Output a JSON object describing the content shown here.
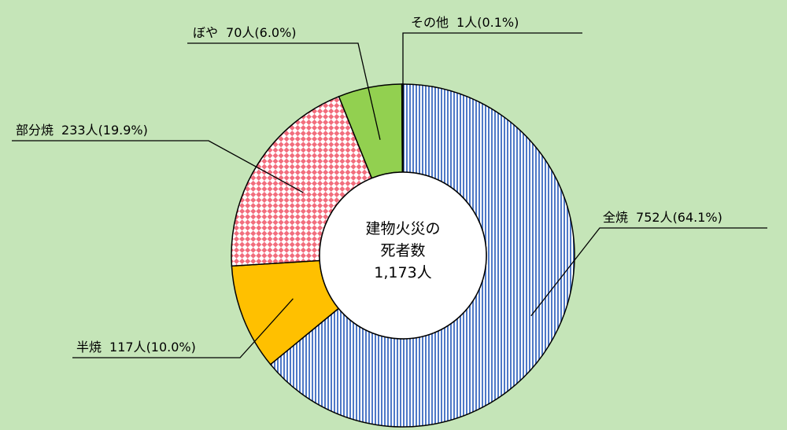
{
  "chart_data": {
    "type": "pie",
    "donut": true,
    "center_label": [
      "建物火災の",
      "死者数",
      "1,173人"
    ],
    "slices": [
      {
        "name": "全焼",
        "count_label": "752人",
        "percent_label": "(64.1%)",
        "value": 64.1,
        "color": "#4f79c7",
        "pattern": "vertical-stripes"
      },
      {
        "name": "半焼",
        "count_label": "117人",
        "percent_label": "(10.0%)",
        "value": 10.0,
        "color": "#ffc000",
        "pattern": "solid"
      },
      {
        "name": "部分焼",
        "count_label": "233人",
        "percent_label": "(19.9%)",
        "value": 19.9,
        "color": "#f26d7d",
        "pattern": "diamond-check"
      },
      {
        "name": "ぼや",
        "count_label": "70人",
        "percent_label": "(6.0%)",
        "value": 6.0,
        "color": "#92d050",
        "pattern": "solid"
      },
      {
        "name": "その他",
        "count_label": "1人",
        "percent_label": "(0.1%)",
        "value": 0.1,
        "color": "#ffffff",
        "pattern": "solid"
      }
    ],
    "legend": "none",
    "start_angle": "top",
    "direction": "clockwise"
  }
}
